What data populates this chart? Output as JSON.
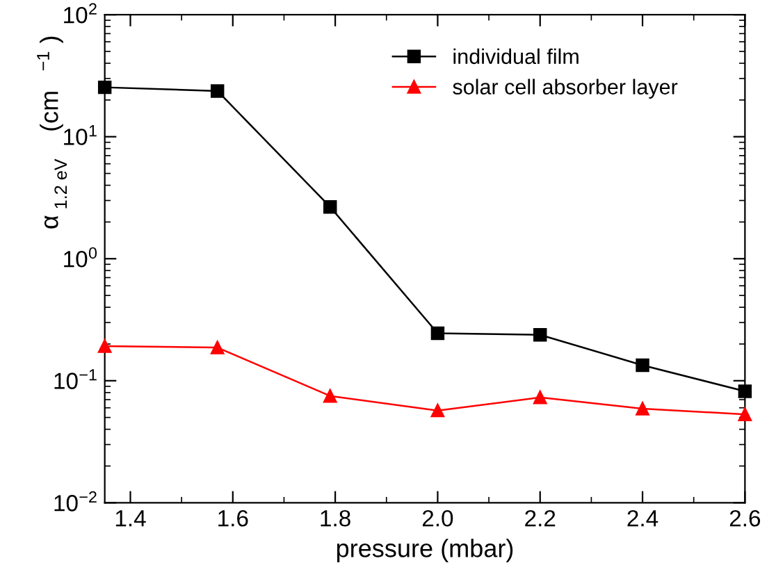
{
  "chart_data": {
    "type": "line",
    "xlabel": "pressure (mbar)",
    "ylabel": "α$_{1.2 eV}$ (cm$^{−1}$)",
    "x": [
      1.35,
      1.57,
      1.79,
      2.0,
      2.2,
      2.4,
      2.6
    ],
    "series": [
      {
        "name": "individual film",
        "color": "#000000",
        "marker": "square",
        "values": [
          25.4,
          23.7,
          2.66,
          0.245,
          0.238,
          0.134,
          0.082
        ]
      },
      {
        "name": "solar cell absorber layer",
        "color": "#ff0000",
        "marker": "triangle",
        "values": [
          0.192,
          0.187,
          0.075,
          0.057,
          0.073,
          0.059,
          0.053
        ]
      }
    ],
    "log": "y",
    "xlim": [
      1.35,
      2.6
    ],
    "xticks": [
      {
        "value": 1.4,
        "label": "1.4"
      },
      {
        "value": 1.6,
        "label": "1.6"
      },
      {
        "value": 1.8,
        "label": "1.8"
      },
      {
        "value": 2.0,
        "label": "2.0"
      },
      {
        "value": 2.2,
        "label": "2.2"
      },
      {
        "value": 2.4,
        "label": "2.4"
      },
      {
        "value": 2.6,
        "label": "2.6"
      }
    ],
    "ylim": [
      0.01,
      100
    ],
    "yticks": [
      {
        "value": 0.01,
        "label": "10$^{−2}$"
      },
      {
        "value": 0.1,
        "label": "10$^{−1}$"
      },
      {
        "value": 1,
        "label": "10$^{0}$"
      },
      {
        "value": 10,
        "label": "10$^{1}$"
      },
      {
        "value": 100,
        "label": "10$^{2}$"
      }
    ],
    "legend": "top right",
    "grid": false,
    "line_style": "solid"
  }
}
